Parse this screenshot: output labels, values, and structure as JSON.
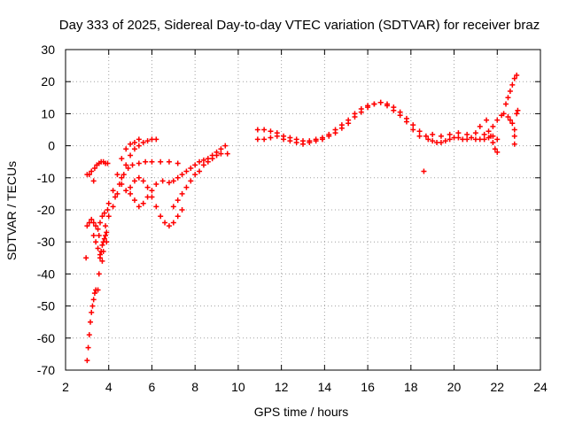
{
  "chart_data": {
    "type": "scatter",
    "title": "Day 333 of 2025, Sidereal Day-to-day VTEC variation (SDTVAR) for receiver braz",
    "xlabel": "GPS time / hours",
    "ylabel": "SDTVAR / TECUs",
    "xlim": [
      2,
      24
    ],
    "ylim": [
      -70,
      30
    ],
    "grid": true,
    "marker": "+",
    "color": "#ff0000",
    "x_ticks": [
      "2",
      "4",
      "6",
      "8",
      "10",
      "12",
      "14",
      "16",
      "18",
      "20",
      "22",
      "24"
    ],
    "y_ticks": [
      "30",
      "20",
      "10",
      "0",
      "-10",
      "-20",
      "-30",
      "-40",
      "-50",
      "-60",
      "-70"
    ],
    "series": [
      {
        "name": "early_low_arc",
        "points": [
          [
            3.0,
            -67
          ],
          [
            3.05,
            -63
          ],
          [
            3.1,
            -59
          ],
          [
            3.15,
            -55
          ],
          [
            3.2,
            -52
          ],
          [
            3.25,
            -50
          ],
          [
            3.3,
            -48
          ],
          [
            3.35,
            -46
          ],
          [
            3.4,
            -45
          ],
          [
            3.5,
            -45
          ],
          [
            3.55,
            -40
          ],
          [
            3.6,
            -35
          ],
          [
            3.65,
            -33
          ],
          [
            3.7,
            -31
          ],
          [
            3.75,
            -30
          ],
          [
            3.8,
            -29
          ],
          [
            3.85,
            -28
          ],
          [
            3.9,
            -27
          ]
        ]
      },
      {
        "name": "early_cluster",
        "points": [
          [
            2.95,
            -35
          ],
          [
            3.0,
            -25
          ],
          [
            3.1,
            -24
          ],
          [
            3.2,
            -23
          ],
          [
            3.3,
            -24
          ],
          [
            3.4,
            -25
          ],
          [
            3.5,
            -26
          ],
          [
            3.6,
            -24
          ],
          [
            3.7,
            -22
          ],
          [
            3.8,
            -21
          ],
          [
            3.85,
            -25
          ],
          [
            3.9,
            -30
          ],
          [
            3.5,
            -32
          ],
          [
            3.6,
            -34
          ],
          [
            3.7,
            -36
          ],
          [
            3.75,
            -33
          ],
          [
            3.3,
            -28
          ],
          [
            3.4,
            -30
          ],
          [
            3.55,
            -28
          ]
        ]
      },
      {
        "name": "early_upper_arc",
        "points": [
          [
            3.0,
            -9
          ],
          [
            3.1,
            -9
          ],
          [
            3.2,
            -8
          ],
          [
            3.3,
            -11
          ],
          [
            3.35,
            -7
          ],
          [
            3.45,
            -6
          ],
          [
            3.55,
            -5.5
          ],
          [
            3.65,
            -5
          ],
          [
            3.75,
            -5
          ],
          [
            3.85,
            -5.5
          ],
          [
            3.95,
            -5.5
          ]
        ]
      },
      {
        "name": "rising_arc_a",
        "points": [
          [
            3.95,
            -20
          ],
          [
            4.0,
            -22
          ],
          [
            4.2,
            -19
          ],
          [
            4.4,
            -15
          ],
          [
            4.6,
            -10
          ],
          [
            4.8,
            -6
          ],
          [
            5.0,
            -3
          ],
          [
            5.2,
            -1
          ],
          [
            5.4,
            0
          ],
          [
            5.6,
            1
          ],
          [
            5.8,
            1.5
          ],
          [
            6.0,
            2
          ],
          [
            6.2,
            2
          ]
        ]
      },
      {
        "name": "rising_arc_b",
        "points": [
          [
            4.0,
            -18
          ],
          [
            4.2,
            -14
          ],
          [
            4.4,
            -9
          ],
          [
            4.6,
            -4
          ],
          [
            4.8,
            -1
          ],
          [
            5.0,
            0.5
          ],
          [
            5.2,
            1
          ],
          [
            5.4,
            2
          ]
        ]
      },
      {
        "name": "rising_arc_c",
        "points": [
          [
            4.3,
            -16
          ],
          [
            4.5,
            -12
          ],
          [
            4.7,
            -9
          ],
          [
            4.9,
            -7
          ],
          [
            5.1,
            -6
          ],
          [
            5.4,
            -5.5
          ],
          [
            5.7,
            -5
          ],
          [
            6.0,
            -5
          ],
          [
            6.4,
            -5
          ],
          [
            6.8,
            -5
          ],
          [
            7.2,
            -5.5
          ]
        ]
      },
      {
        "name": "dip_arc",
        "points": [
          [
            4.6,
            -12
          ],
          [
            4.8,
            -14
          ],
          [
            5.0,
            -13
          ],
          [
            5.2,
            -11
          ],
          [
            5.4,
            -10
          ],
          [
            5.6,
            -11
          ],
          [
            5.8,
            -13
          ],
          [
            6.0,
            -16
          ],
          [
            6.2,
            -19
          ],
          [
            6.4,
            -22
          ],
          [
            6.6,
            -24
          ],
          [
            6.8,
            -25
          ],
          [
            7.0,
            -24
          ],
          [
            7.2,
            -22
          ],
          [
            7.4,
            -20
          ]
        ]
      },
      {
        "name": "dip_arc_upper",
        "points": [
          [
            5.0,
            -15
          ],
          [
            5.2,
            -17
          ],
          [
            5.4,
            -19
          ],
          [
            5.6,
            -18
          ],
          [
            5.8,
            -16
          ],
          [
            6.0,
            -14
          ],
          [
            6.2,
            -12
          ]
        ]
      },
      {
        "name": "late_morning_arc",
        "points": [
          [
            6.5,
            -11
          ],
          [
            6.8,
            -11.5
          ],
          [
            7.0,
            -11
          ],
          [
            7.2,
            -10
          ],
          [
            7.4,
            -9
          ],
          [
            7.6,
            -8
          ],
          [
            7.8,
            -7
          ],
          [
            8.0,
            -6
          ],
          [
            8.2,
            -5
          ],
          [
            8.4,
            -4.5
          ],
          [
            8.6,
            -4
          ],
          [
            8.8,
            -3
          ],
          [
            9.0,
            -2
          ],
          [
            9.2,
            -1
          ],
          [
            9.4,
            0
          ]
        ]
      },
      {
        "name": "late_morning_arc_low",
        "points": [
          [
            7.0,
            -19
          ],
          [
            7.2,
            -17
          ],
          [
            7.4,
            -15
          ],
          [
            7.6,
            -13
          ],
          [
            7.8,
            -11
          ],
          [
            8.0,
            -9
          ],
          [
            8.2,
            -8
          ],
          [
            8.4,
            -6
          ],
          [
            8.6,
            -5
          ],
          [
            8.8,
            -4
          ],
          [
            9.0,
            -3
          ],
          [
            9.2,
            -2.5
          ],
          [
            9.5,
            -2.5
          ]
        ]
      },
      {
        "name": "midday_arc",
        "points": [
          [
            10.9,
            5
          ],
          [
            11.2,
            5
          ],
          [
            11.5,
            4.5
          ],
          [
            11.8,
            4
          ],
          [
            12.1,
            3
          ],
          [
            12.4,
            2.5
          ],
          [
            12.7,
            2
          ],
          [
            13.0,
            1.5
          ],
          [
            13.3,
            1.5
          ],
          [
            13.6,
            2
          ],
          [
            13.9,
            2.5
          ],
          [
            14.2,
            3.5
          ],
          [
            14.5,
            5
          ],
          [
            14.8,
            6.5
          ],
          [
            15.1,
            8
          ],
          [
            15.4,
            10
          ],
          [
            15.7,
            11.5
          ],
          [
            16.0,
            12.5
          ],
          [
            16.3,
            13
          ],
          [
            16.6,
            13.5
          ],
          [
            16.9,
            13
          ],
          [
            17.2,
            12
          ],
          [
            17.5,
            10.5
          ],
          [
            17.8,
            8.5
          ],
          [
            18.1,
            6.5
          ],
          [
            18.4,
            4.5
          ],
          [
            18.7,
            3
          ]
        ]
      },
      {
        "name": "midday_arc_low",
        "points": [
          [
            10.9,
            2
          ],
          [
            11.2,
            2
          ],
          [
            11.5,
            2.5
          ],
          [
            11.8,
            3
          ],
          [
            12.1,
            2
          ],
          [
            12.4,
            1.5
          ],
          [
            12.7,
            1
          ],
          [
            13.0,
            0.5
          ],
          [
            13.3,
            1
          ],
          [
            13.6,
            1.5
          ],
          [
            13.9,
            2
          ],
          [
            14.2,
            3
          ],
          [
            14.5,
            4
          ],
          [
            14.8,
            5.5
          ],
          [
            15.1,
            7
          ],
          [
            15.4,
            9
          ],
          [
            15.7,
            10.5
          ],
          [
            16.0,
            12
          ],
          [
            16.3,
            13
          ],
          [
            16.6,
            13.5
          ],
          [
            16.9,
            12.5
          ],
          [
            17.2,
            11
          ],
          [
            17.5,
            9.5
          ],
          [
            17.8,
            7.5
          ],
          [
            18.1,
            5
          ],
          [
            18.4,
            3
          ]
        ]
      },
      {
        "name": "outlier",
        "points": [
          [
            18.6,
            -8
          ]
        ]
      },
      {
        "name": "afternoon_band",
        "points": [
          [
            18.8,
            2
          ],
          [
            19.0,
            1.5
          ],
          [
            19.2,
            1
          ],
          [
            19.4,
            1
          ],
          [
            19.6,
            1.5
          ],
          [
            19.8,
            2
          ],
          [
            20.0,
            2.5
          ],
          [
            20.2,
            2.5
          ],
          [
            20.4,
            2
          ],
          [
            20.6,
            2
          ],
          [
            20.8,
            2.5
          ],
          [
            21.0,
            2
          ],
          [
            21.2,
            2
          ],
          [
            21.4,
            2
          ],
          [
            21.6,
            2.5
          ],
          [
            21.8,
            3
          ],
          [
            22.0,
            2
          ],
          [
            19.0,
            3.5
          ],
          [
            19.4,
            3
          ],
          [
            19.8,
            3.5
          ],
          [
            20.2,
            4
          ],
          [
            20.6,
            3.5
          ],
          [
            21.0,
            4
          ],
          [
            21.4,
            3.5
          ],
          [
            21.6,
            4.5
          ],
          [
            21.8,
            6
          ],
          [
            22.0,
            8
          ],
          [
            22.2,
            9.5
          ],
          [
            21.2,
            6
          ],
          [
            21.5,
            8
          ]
        ]
      },
      {
        "name": "evening_drop",
        "points": [
          [
            21.7,
            3
          ],
          [
            21.8,
            1
          ],
          [
            21.9,
            -1
          ],
          [
            22.0,
            -2
          ]
        ]
      },
      {
        "name": "evening_rise",
        "points": [
          [
            22.3,
            10
          ],
          [
            22.4,
            13
          ],
          [
            22.5,
            15
          ],
          [
            22.6,
            17
          ],
          [
            22.7,
            19
          ],
          [
            22.8,
            21
          ],
          [
            22.9,
            22
          ],
          [
            22.5,
            9
          ],
          [
            22.6,
            8
          ],
          [
            22.7,
            7
          ],
          [
            22.8,
            5
          ],
          [
            22.9,
            10
          ],
          [
            22.95,
            11
          ],
          [
            22.8,
            0.5
          ],
          [
            22.8,
            3
          ]
        ]
      }
    ]
  }
}
